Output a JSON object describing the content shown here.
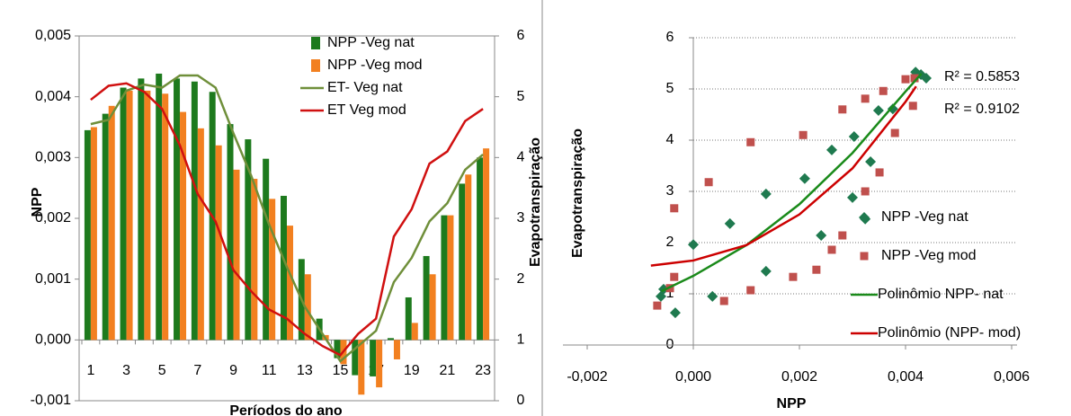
{
  "chart_data": [
    {
      "type": "bar",
      "ylabel": "NPP",
      "y2label": "Evapotranspiração",
      "xlabel": "Períodos do ano",
      "categories": [
        "1",
        null,
        "3",
        null,
        "5",
        null,
        "7",
        null,
        "9",
        null,
        "11",
        null,
        "13",
        null,
        "15",
        null,
        "17",
        null,
        "19",
        null,
        "21",
        null,
        "23"
      ],
      "ylim": [
        -0.001,
        0.005
      ],
      "yticks": [
        {
          "value": -0.001,
          "label": "-0,001"
        },
        {
          "value": 0,
          "label": "0,000"
        },
        {
          "value": 0.001,
          "label": "0,001"
        },
        {
          "value": 0.002,
          "label": "0,002"
        },
        {
          "value": 0.003,
          "label": "0,003"
        },
        {
          "value": 0.004,
          "label": "0,004"
        },
        {
          "value": 0.005,
          "label": "0,005"
        }
      ],
      "y2lim": [
        0,
        6
      ],
      "y2ticks": [
        0,
        1,
        2,
        3,
        4,
        5,
        6
      ],
      "legend": "upper right",
      "series": [
        {
          "name": "NPP -Veg  nat",
          "type": "bar",
          "color": "#1d7a1d",
          "values": [
            0.00345,
            0.00372,
            0.00415,
            0.0043,
            0.00438,
            0.0043,
            0.00425,
            0.00408,
            0.00355,
            0.0033,
            0.00298,
            0.00237,
            0.00133,
            0.00035,
            -0.0003,
            -0.00058,
            -0.0006,
            3e-05,
            0.0007,
            0.00138,
            0.00205,
            0.00257,
            0.003
          ]
        },
        {
          "name": "NPP -Veg mod",
          "type": "bar",
          "color": "#f28020",
          "values": [
            0.0035,
            0.00385,
            0.0041,
            0.0041,
            0.00405,
            0.00375,
            0.00348,
            0.0032,
            0.0028,
            0.00265,
            0.00232,
            0.00188,
            0.00108,
            8e-05,
            -0.0004,
            -0.0009,
            -0.00078,
            -0.00032,
            0.00028,
            0.00108,
            0.00205,
            0.00272,
            0.00315
          ]
        },
        {
          "name": "ET- Veg nat",
          "type": "line",
          "axis": "y2",
          "color": "#6f8f3a",
          "values": [
            4.55,
            4.62,
            5.1,
            5.2,
            5.15,
            5.35,
            5.35,
            5.15,
            4.4,
            3.7,
            2.9,
            2.2,
            1.55,
            1.1,
            0.65,
            0.9,
            1.15,
            1.95,
            2.35,
            2.95,
            3.25,
            3.8,
            4.05
          ]
        },
        {
          "name": "ET Veg mod",
          "type": "line",
          "axis": "y2",
          "color": "#d01010",
          "values": [
            4.95,
            5.18,
            5.22,
            5.08,
            4.8,
            4.2,
            3.4,
            2.95,
            2.15,
            1.8,
            1.5,
            1.35,
            1.1,
            0.9,
            0.75,
            1.1,
            1.35,
            2.7,
            3.15,
            3.9,
            4.1,
            4.6,
            4.8
          ]
        }
      ]
    },
    {
      "type": "scatter",
      "xlabel": "NPP",
      "ylabel": "Evapotranspiração",
      "xlim": [
        -0.002,
        0.006
      ],
      "xticks": [
        {
          "value": -0.002,
          "label": "-0,002"
        },
        {
          "value": 0,
          "label": "0,000"
        },
        {
          "value": 0.002,
          "label": "0,002"
        },
        {
          "value": 0.004,
          "label": "0,004"
        },
        {
          "value": 0.006,
          "label": "0,006"
        }
      ],
      "ylim": [
        0,
        6
      ],
      "yticks": [
        0,
        1,
        2,
        3,
        4,
        5,
        6
      ],
      "grid": true,
      "legend": "center right",
      "annotations": [
        "R² = 0.5853",
        "R² = 0.9102"
      ],
      "series": [
        {
          "name": "NPP -Veg  nat",
          "type": "scatter",
          "marker": "diamond",
          "color": "#1f7a4f",
          "x": [
            -0.00056,
            -0.00061,
            -0.00034,
            0,
            0.00036,
            0.00069,
            0.00137,
            0.00137,
            0.0021,
            0.00241,
            0.00261,
            0.003,
            0.00303,
            0.00324,
            0.00334,
            0.00349,
            0.00376,
            0.00419,
            0.00429,
            0.00439
          ],
          "values": [
            1.09,
            0.95,
            0.63,
            1.96,
            0.95,
            2.37,
            2.95,
            1.44,
            3.25,
            2.14,
            3.81,
            2.88,
            4.07,
            2.46,
            3.58,
            4.58,
            4.61,
            5.33,
            5.28,
            5.21
          ]
        },
        {
          "name": "NPP -Veg mod",
          "type": "scatter",
          "marker": "square",
          "color": "#c0504d",
          "x": [
            -0.00044,
            -0.00036,
            -0.00036,
            -0.00068,
            0.00029,
            0.00058,
            0.00108,
            0.00108,
            0.00188,
            0.00207,
            0.00232,
            0.00261,
            0.00281,
            0.00281,
            0.00324,
            0.00324,
            0.00351,
            0.00358,
            0.0038,
            0.004,
            0.00417,
            0.00414
          ],
          "values": [
            1.11,
            1.33,
            2.67,
            0.77,
            3.18,
            0.86,
            3.96,
            1.07,
            1.33,
            4.1,
            1.47,
            1.86,
            2.14,
            4.6,
            3.0,
            4.81,
            3.37,
            4.96,
            4.14,
            5.19,
            5.21,
            4.67
          ]
        },
        {
          "name": "Polinômio NPP- nat",
          "type": "line",
          "color": "#1a8a1a",
          "x": [
            -0.0006,
            0,
            0.001,
            0.002,
            0.003,
            0.004,
            0.0043
          ],
          "values": [
            1.05,
            1.35,
            1.95,
            2.75,
            3.75,
            4.95,
            5.3
          ]
        },
        {
          "name": "Polinômio (NPP- mod)",
          "type": "line",
          "color": "#cc0000",
          "x": [
            -0.0008,
            0,
            0.001,
            0.002,
            0.003,
            0.004,
            0.0042
          ],
          "values": [
            1.55,
            1.65,
            1.95,
            2.55,
            3.45,
            4.75,
            5.05
          ]
        }
      ]
    }
  ]
}
